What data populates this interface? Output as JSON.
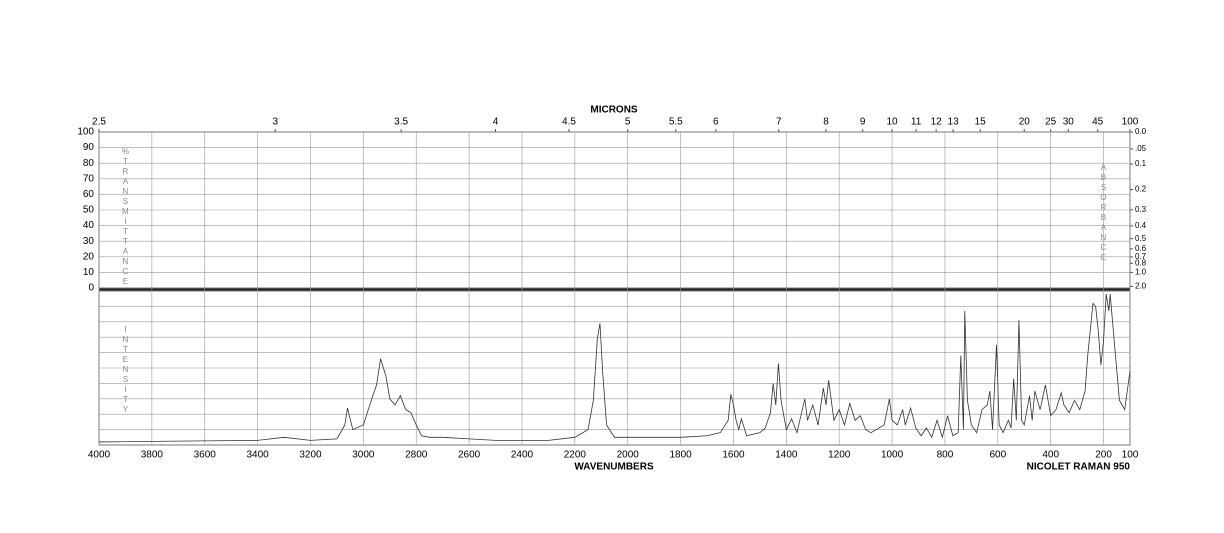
{
  "chart_data": {
    "type": "line",
    "top_axis_title": "MICRONS",
    "x_axis_title": "WAVENUMBERS",
    "instrument": "NICOLET RAMAN 950",
    "left_axis_title": "%TRANSMITTANCE",
    "lower_axis_title": "INTENSITY",
    "right_axis_title": "ABSORBANCE",
    "color": "#333333",
    "grid": true,
    "xlim": [
      4000,
      100
    ],
    "xticks": [
      4000,
      3800,
      3600,
      3400,
      3200,
      3000,
      2800,
      2600,
      2400,
      2200,
      2000,
      1800,
      1600,
      1400,
      1200,
      1000,
      800,
      600,
      400,
      200,
      100
    ],
    "top_ticks": [
      2.5,
      3,
      3.5,
      4,
      4.5,
      5,
      5.5,
      6,
      7,
      8,
      9,
      10,
      11,
      12,
      13,
      15,
      20,
      25,
      30,
      45,
      100
    ],
    "ylim": [
      0,
      100
    ],
    "yticks": [
      0,
      10,
      20,
      30,
      40,
      50,
      60,
      70,
      80,
      90,
      100
    ],
    "absorbance_ticks": [
      {
        "value": 0,
        "label": "0.0"
      },
      {
        "value": 0.05,
        "label": ".05"
      },
      0.1,
      0.2,
      0.3,
      0.4,
      0.5,
      0.6,
      0.7,
      0.8,
      {
        "value": 1,
        "label": "1.0"
      },
      {
        "value": 2,
        "label": "2.0"
      }
    ],
    "x": [
      4000,
      3400,
      3300,
      3200,
      3100,
      3070,
      3060,
      3040,
      3000,
      2970,
      2950,
      2935,
      2915,
      2900,
      2880,
      2860,
      2840,
      2820,
      2800,
      2780,
      2750,
      2700,
      2600,
      2500,
      2400,
      2300,
      2200,
      2150,
      2130,
      2115,
      2105,
      2095,
      2080,
      2050,
      2000,
      1800,
      1700,
      1650,
      1620,
      1610,
      1600,
      1590,
      1580,
      1570,
      1550,
      1500,
      1480,
      1460,
      1450,
      1440,
      1430,
      1420,
      1400,
      1380,
      1360,
      1330,
      1320,
      1300,
      1280,
      1260,
      1250,
      1240,
      1220,
      1200,
      1180,
      1160,
      1140,
      1120,
      1100,
      1080,
      1050,
      1030,
      1010,
      1000,
      980,
      960,
      950,
      930,
      910,
      890,
      870,
      850,
      830,
      810,
      790,
      770,
      750,
      740,
      730,
      725,
      715,
      700,
      680,
      660,
      640,
      630,
      620,
      605,
      595,
      580,
      560,
      550,
      540,
      530,
      520,
      510,
      500,
      480,
      470,
      460,
      440,
      420,
      400,
      380,
      360,
      350,
      330,
      310,
      290,
      270,
      260,
      240,
      230,
      220,
      210,
      200,
      190,
      180,
      175,
      160,
      140,
      120,
      100
    ],
    "values": [
      2,
      3,
      5,
      3,
      4,
      13,
      24,
      10,
      13,
      29,
      39,
      56,
      45,
      30,
      26,
      32,
      23,
      21,
      13,
      6,
      5,
      5,
      4,
      3,
      3,
      3,
      5,
      10,
      29,
      69,
      79,
      48,
      13,
      5,
      5,
      5,
      6,
      8,
      16,
      33,
      26,
      16,
      10,
      17,
      6,
      8,
      11,
      21,
      40,
      26,
      53,
      29,
      10,
      17,
      8,
      30,
      16,
      26,
      13,
      37,
      26,
      42,
      16,
      23,
      13,
      27,
      16,
      19,
      10,
      8,
      11,
      13,
      30,
      16,
      13,
      23,
      13,
      24,
      11,
      6,
      11,
      5,
      16,
      5,
      19,
      6,
      8,
      58,
      10,
      87,
      29,
      13,
      8,
      23,
      26,
      35,
      10,
      65,
      13,
      8,
      16,
      11,
      43,
      16,
      81,
      16,
      13,
      32,
      16,
      35,
      23,
      39,
      19,
      23,
      34,
      26,
      21,
      29,
      23,
      35,
      58,
      92,
      90,
      74,
      52,
      68,
      98,
      87,
      98,
      68,
      29,
      23,
      48
    ]
  }
}
